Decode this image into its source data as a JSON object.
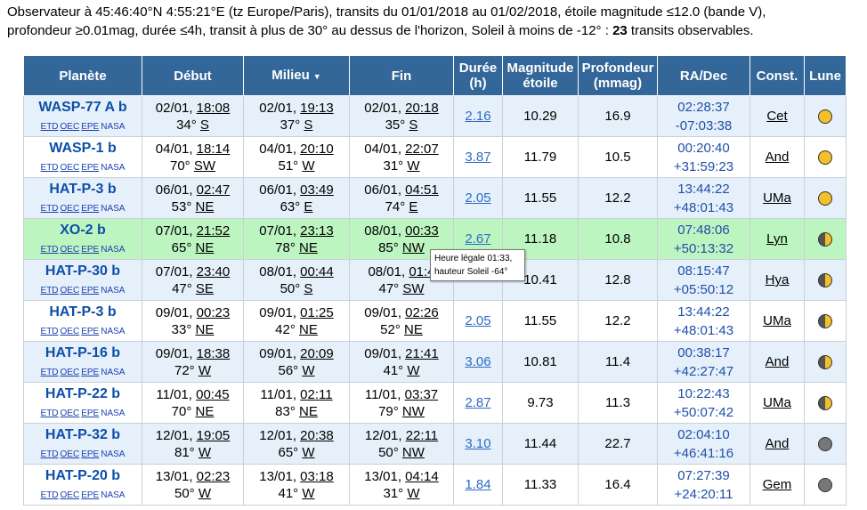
{
  "intro": {
    "line1": "Observateur à 45:46:40°N 4:55:21°E (tz Europe/Paris), transits du 01/01/2018 au 01/02/2018, étoile magnitude ≤12.0 (bande V),",
    "line2_pre": "profondeur ≥0.01mag, durée ≤4h, transit à plus de 30° au dessus de l'horizon, Soleil à moins de -12° : ",
    "count": "23",
    "line2_post": " transits observables."
  },
  "headers": {
    "planet": "Planète",
    "start": "Début",
    "mid": "Milieu",
    "end": "Fin",
    "duration": "Durée (h)",
    "magnitude": "Magnitude étoile",
    "depth": "Profondeur (mmag)",
    "radec": "RA/Dec",
    "const": "Const.",
    "moon": "Lune",
    "sort_arrow": "▼"
  },
  "links": [
    "ETD",
    "OEC",
    "EPE",
    "NASA"
  ],
  "rows": [
    {
      "planet": "WASP-77 A b",
      "start_d": "02/01,",
      "start_t": "18:08",
      "start_alt": "34°",
      "start_az": "S",
      "mid_d": "02/01,",
      "mid_t": "19:13",
      "mid_alt": "37°",
      "mid_az": "S",
      "end_d": "02/01,",
      "end_t": "20:18",
      "end_alt": "35°",
      "end_az": "S",
      "dur": "2.16",
      "mag": "10.29",
      "depth": "16.9",
      "ra": "02:28:37",
      "dec": "-07:03:38",
      "const": "Cet",
      "moon": "full"
    },
    {
      "planet": "WASP-1 b",
      "start_d": "04/01,",
      "start_t": "18:14",
      "start_alt": "70°",
      "start_az": "SW",
      "mid_d": "04/01,",
      "mid_t": "20:10",
      "mid_alt": "51°",
      "mid_az": "W",
      "end_d": "04/01,",
      "end_t": "22:07",
      "end_alt": "31°",
      "end_az": "W",
      "dur": "3.87",
      "mag": "11.79",
      "depth": "10.5",
      "ra": "00:20:40",
      "dec": "+31:59:23",
      "const": "And",
      "moon": "full"
    },
    {
      "planet": "HAT-P-3 b",
      "start_d": "06/01,",
      "start_t": "02:47",
      "start_alt": "53°",
      "start_az": "NE",
      "mid_d": "06/01,",
      "mid_t": "03:49",
      "mid_alt": "63°",
      "mid_az": "E",
      "end_d": "06/01,",
      "end_t": "04:51",
      "end_alt": "74°",
      "end_az": "E",
      "dur": "2.05",
      "mag": "11.55",
      "depth": "12.2",
      "ra": "13:44:22",
      "dec": "+48:01:43",
      "const": "UMa",
      "moon": "full"
    },
    {
      "planet": "XO-2 b",
      "start_d": "07/01,",
      "start_t": "21:52",
      "start_alt": "65°",
      "start_az": "NE",
      "mid_d": "07/01,",
      "mid_t": "23:13",
      "mid_alt": "78°",
      "mid_az": "NE",
      "end_d": "08/01,",
      "end_t": "00:33",
      "end_alt": "85°",
      "end_az": "NW",
      "dur": "2.67",
      "mag": "11.18",
      "depth": "10.8",
      "ra": "07:48:06",
      "dec": "+50:13:32",
      "const": "Lyn",
      "moon": "half"
    },
    {
      "planet": "HAT-P-30 b",
      "start_d": "07/01,",
      "start_t": "23:40",
      "start_alt": "47°",
      "start_az": "SE",
      "mid_d": "08/01,",
      "mid_t": "00:44",
      "mid_alt": "50°",
      "mid_az": "S",
      "end_d": "08/01,",
      "end_t": "01:4",
      "end_alt": "47°",
      "end_az": "SW",
      "dur": "",
      "mag": "10.41",
      "depth": "12.8",
      "ra": "08:15:47",
      "dec": "+05:50:12",
      "const": "Hya",
      "moon": "half"
    },
    {
      "planet": "HAT-P-3 b",
      "start_d": "09/01,",
      "start_t": "00:23",
      "start_alt": "33°",
      "start_az": "NE",
      "mid_d": "09/01,",
      "mid_t": "01:25",
      "mid_alt": "42°",
      "mid_az": "NE",
      "end_d": "09/01,",
      "end_t": "02:26",
      "end_alt": "52°",
      "end_az": "NE",
      "dur": "2.05",
      "mag": "11.55",
      "depth": "12.2",
      "ra": "13:44:22",
      "dec": "+48:01:43",
      "const": "UMa",
      "moon": "half"
    },
    {
      "planet": "HAT-P-16 b",
      "start_d": "09/01,",
      "start_t": "18:38",
      "start_alt": "72°",
      "start_az": "W",
      "mid_d": "09/01,",
      "mid_t": "20:09",
      "mid_alt": "56°",
      "mid_az": "W",
      "end_d": "09/01,",
      "end_t": "21:41",
      "end_alt": "41°",
      "end_az": "W",
      "dur": "3.06",
      "mag": "10.81",
      "depth": "11.4",
      "ra": "00:38:17",
      "dec": "+42:27:47",
      "const": "And",
      "moon": "half"
    },
    {
      "planet": "HAT-P-22 b",
      "start_d": "11/01,",
      "start_t": "00:45",
      "start_alt": "70°",
      "start_az": "NE",
      "mid_d": "11/01,",
      "mid_t": "02:11",
      "mid_alt": "83°",
      "mid_az": "NE",
      "end_d": "11/01,",
      "end_t": "03:37",
      "end_alt": "79°",
      "end_az": "NW",
      "dur": "2.87",
      "mag": "9.73",
      "depth": "11.3",
      "ra": "10:22:43",
      "dec": "+50:07:42",
      "const": "UMa",
      "moon": "half"
    },
    {
      "planet": "HAT-P-32 b",
      "start_d": "12/01,",
      "start_t": "19:05",
      "start_alt": "81°",
      "start_az": "W",
      "mid_d": "12/01,",
      "mid_t": "20:38",
      "mid_alt": "65°",
      "mid_az": "W",
      "end_d": "12/01,",
      "end_t": "22:11",
      "end_alt": "50°",
      "end_az": "NW",
      "dur": "3.10",
      "mag": "11.44",
      "depth": "22.7",
      "ra": "02:04:10",
      "dec": "+46:41:16",
      "const": "And",
      "moon": "new"
    },
    {
      "planet": "HAT-P-20 b",
      "start_d": "13/01,",
      "start_t": "02:23",
      "start_alt": "50°",
      "start_az": "W",
      "mid_d": "13/01,",
      "mid_t": "03:18",
      "mid_alt": "41°",
      "mid_az": "W",
      "end_d": "13/01,",
      "end_t": "04:14",
      "end_alt": "31°",
      "end_az": "W",
      "dur": "1.84",
      "mag": "11.33",
      "depth": "16.4",
      "ra": "07:27:39",
      "dec": "+24:20:11",
      "const": "Gem",
      "moon": "new"
    }
  ],
  "tooltip": {
    "line1": "Heure légale 01:33,",
    "line2": "hauteur Soleil -64°"
  }
}
